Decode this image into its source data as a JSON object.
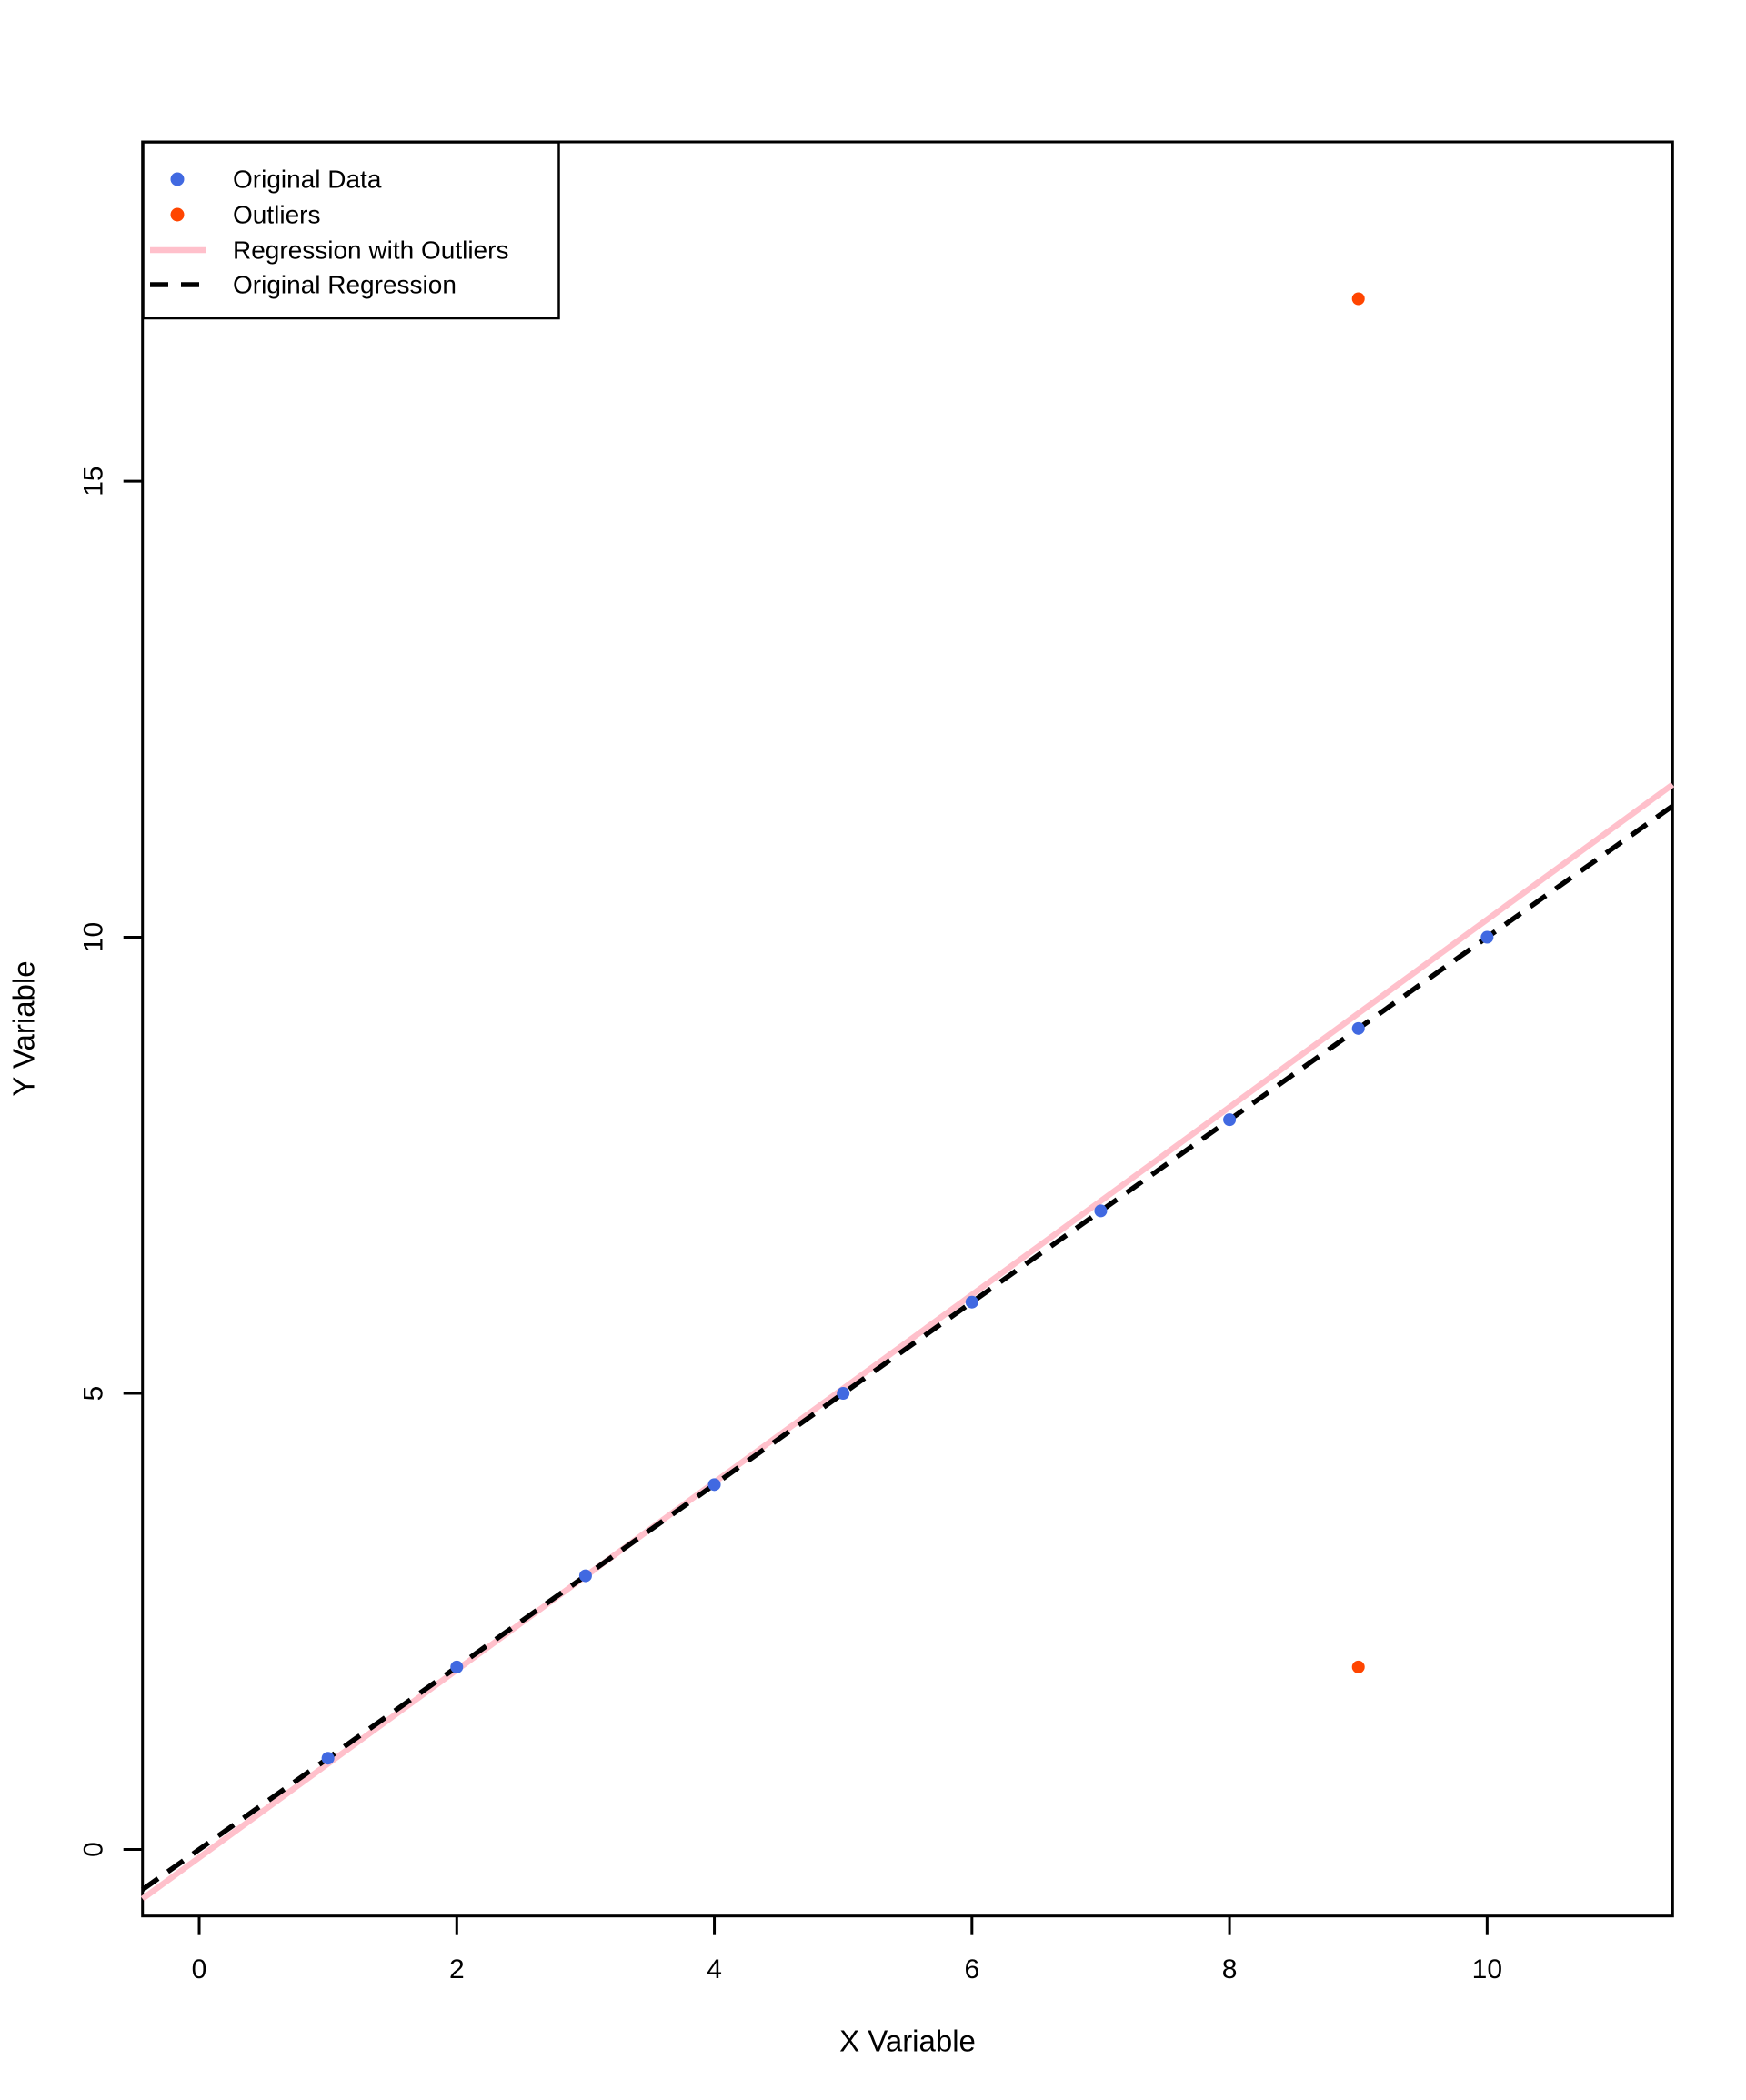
{
  "figure": {
    "background": "#ffffff"
  },
  "chart_data": {
    "type": "scatter",
    "title": "",
    "xlabel": "X Variable",
    "ylabel": "Y Variable",
    "axes": {
      "xlim": [
        -0.44,
        11.44
      ],
      "ylim": [
        -0.73,
        18.72
      ],
      "x_ticks": [
        0,
        2,
        4,
        6,
        8,
        10
      ],
      "y_ticks": [
        0,
        5,
        10,
        15
      ],
      "grid": false
    },
    "series": [
      {
        "name": "Original Data",
        "color": "#4169E1",
        "marker": "filled-circle",
        "points": [
          [
            1,
            1
          ],
          [
            2,
            2
          ],
          [
            3,
            3
          ],
          [
            4,
            4
          ],
          [
            5,
            5
          ],
          [
            6,
            6
          ],
          [
            7,
            7
          ],
          [
            8,
            8
          ],
          [
            9,
            9
          ],
          [
            10,
            10
          ]
        ]
      },
      {
        "name": "Outliers",
        "color": "#FF4500",
        "marker": "filled-circle",
        "points": [
          [
            9,
            17
          ],
          [
            9,
            2
          ]
        ]
      }
    ],
    "lines": [
      {
        "name": "Regression with Outliers",
        "color": "#FFC0CB",
        "style": "solid",
        "width": 6.5,
        "slope": 1.0283,
        "intercept": -0.0889
      },
      {
        "name": "Original Regression",
        "color": "#000000",
        "style": "dashed",
        "width": 5.5,
        "slope": 1.0,
        "intercept": 0.0
      }
    ],
    "legend": {
      "position": "topleft",
      "entries": [
        {
          "label": "Original Data",
          "type": "point",
          "style": "solid",
          "color": "#4169E1"
        },
        {
          "label": "Outliers",
          "type": "point",
          "style": "solid",
          "color": "#FF4500"
        },
        {
          "label": "Regression with Outliers",
          "type": "line",
          "style": "solid",
          "color": "#FFC0CB"
        },
        {
          "label": "Original Regression",
          "type": "line",
          "style": "dashed",
          "color": "#000000"
        }
      ]
    }
  }
}
